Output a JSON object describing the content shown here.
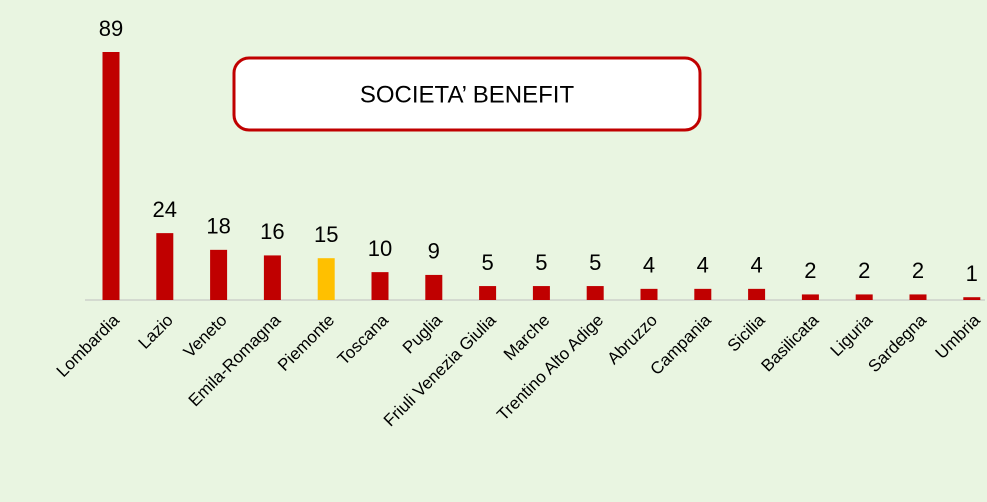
{
  "chart_data": {
    "type": "bar",
    "title": "SOCIETA’ BENEFIT",
    "categories": [
      "Lombardia",
      "Lazio",
      "Veneto",
      "Emila-Romagna",
      "Piemonte",
      "Toscana",
      "Puglia",
      "Friuli Venezia Giulia",
      "Marche",
      "Trentino Alto Adige",
      "Abruzzo",
      "Campania",
      "Sicilia",
      "Basilicata",
      "Liguria",
      "Sardegna",
      "Umbria"
    ],
    "values": [
      89,
      24,
      18,
      16,
      15,
      10,
      9,
      5,
      5,
      5,
      4,
      4,
      4,
      2,
      2,
      2,
      1
    ],
    "colors": [
      "#c00000",
      "#c00000",
      "#c00000",
      "#c00000",
      "#ffc000",
      "#c00000",
      "#c00000",
      "#c00000",
      "#c00000",
      "#c00000",
      "#c00000",
      "#c00000",
      "#c00000",
      "#c00000",
      "#c00000",
      "#c00000",
      "#c00000"
    ]
  }
}
